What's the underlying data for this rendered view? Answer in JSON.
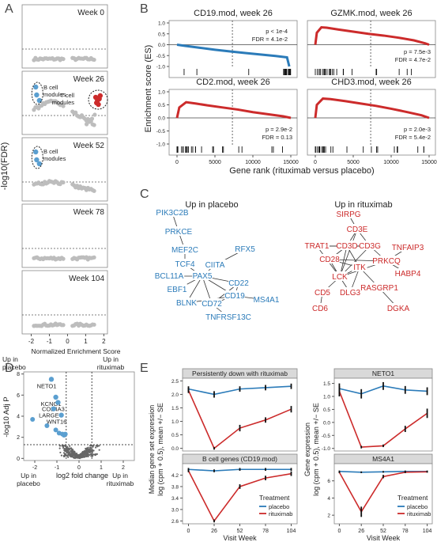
{
  "figure": {
    "description_hidden": ""
  },
  "panel_labels": [
    "A",
    "B",
    "C",
    "D",
    "E"
  ],
  "chart_data": [
    {
      "panel": "A",
      "type": "scatter",
      "ylabel": "-log10(FDR)",
      "xlabel": "Normalized Enrichment Score",
      "xlim": [
        -2.5,
        2.2
      ],
      "xticks": [
        -2,
        -1,
        0,
        1,
        2
      ],
      "x_end_labels": {
        "left": [
          "Up in",
          "placebo"
        ],
        "right": [
          "Up in",
          "rituximab"
        ]
      },
      "threshold_line": "dashed",
      "facets": [
        {
          "title": "Week 0",
          "annotations": []
        },
        {
          "title": "Week 26",
          "annotations": [
            {
              "text": "B cell modules",
              "lines": [
                "B cell",
                "modules"
              ]
            },
            {
              "text": "T cell modules",
              "lines": [
                "T cell",
                "modules"
              ]
            }
          ]
        },
        {
          "title": "Week 52",
          "annotations": [
            {
              "text": "B cell modules",
              "lines": [
                "B cell",
                "modules"
              ]
            }
          ]
        },
        {
          "title": "Week 78",
          "annotations": []
        },
        {
          "title": "Week 104",
          "annotations": []
        }
      ]
    },
    {
      "panel": "B",
      "type": "line",
      "ylabel": "Enrichment score (ES)",
      "xlabel": "Gene rank (rituximab versus placebo)",
      "xlim": [
        0,
        15000
      ],
      "xticks": [
        0,
        5000,
        10000,
        15000
      ],
      "ylim": [
        -1.0,
        1.0
      ],
      "yticks": [
        -1.0,
        -0.5,
        0.0,
        0.5,
        1.0
      ],
      "facets": [
        {
          "title": "CD19.mod, week 26",
          "color": "#2b7bb9",
          "stats": [
            "p < 1e-4",
            "FDR = 4.1e-2"
          ],
          "curve": {
            "x": [
              0,
              1000,
              3000,
              5000,
              7000,
              9000,
              11000,
              13000,
              14500,
              14800
            ],
            "y": [
              0,
              -0.05,
              -0.14,
              -0.23,
              -0.31,
              -0.38,
              -0.45,
              -0.52,
              -0.58,
              -1.0
            ]
          }
        },
        {
          "title": "GZMK.mod, week 26",
          "color": "#cc2b2b",
          "stats": [
            "p = 7.5e-3",
            "FDR = 4.7e-2"
          ],
          "curve": {
            "x": [
              0,
              200,
              800,
              1500,
              3000,
              5000,
              7000,
              9000,
              11000,
              13000,
              14500,
              15000
            ],
            "y": [
              0,
              0.55,
              0.8,
              0.78,
              0.7,
              0.6,
              0.5,
              0.42,
              0.32,
              0.2,
              0.06,
              0
            ]
          }
        },
        {
          "title": "CD2.mod, week 26",
          "color": "#cc2b2b",
          "stats": [
            "p = 2.9e-2",
            "FDR = 0.13"
          ],
          "curve": {
            "x": [
              0,
              300,
              1200,
              2500,
              4000,
              6000,
              8000,
              10000,
              12000,
              14000,
              15000
            ],
            "y": [
              0,
              0.4,
              0.6,
              0.55,
              0.48,
              0.4,
              0.32,
              0.22,
              0.14,
              0.06,
              0
            ]
          }
        },
        {
          "title": "CHD3.mod, week 26",
          "color": "#cc2b2b",
          "stats": [
            "p = 2.0e-3",
            "FDR = 5.4e-2"
          ],
          "curve": {
            "x": [
              0,
              200,
              1000,
              2000,
              4000,
              6000,
              8000,
              10000,
              12000,
              14000,
              15000
            ],
            "y": [
              0,
              0.5,
              0.74,
              0.72,
              0.64,
              0.55,
              0.46,
              0.35,
              0.23,
              0.1,
              0
            ]
          }
        }
      ]
    },
    {
      "panel": "C",
      "type": "network",
      "groups": [
        {
          "title": "Up in placebo",
          "color": "#2b7bb9",
          "nodes": [
            "PIK3C2B",
            "PRKCE",
            "MEF2C",
            "TCF4",
            "CIITA",
            "RFX5",
            "BCL11A",
            "PAX5",
            "EBF1",
            "CD22",
            "BLNK",
            "CD19",
            "MS4A1",
            "CD72",
            "TNFRSF13C"
          ],
          "edges": [
            [
              "PIK3C2B",
              "PRKCE"
            ],
            [
              "PRKCE",
              "MEF2C"
            ],
            [
              "MEF2C",
              "TCF4"
            ],
            [
              "TCF4",
              "PAX5"
            ],
            [
              "CIITA",
              "PAX5"
            ],
            [
              "RFX5",
              "CIITA"
            ],
            [
              "BCL11A",
              "PAX5"
            ],
            [
              "EBF1",
              "PAX5"
            ],
            [
              "PAX5",
              "CD22"
            ],
            [
              "PAX5",
              "CD19"
            ],
            [
              "PAX5",
              "BLNK"
            ],
            [
              "PAX5",
              "CD72"
            ],
            [
              "CD22",
              "CD19"
            ],
            [
              "CD19",
              "MS4A1"
            ],
            [
              "CD22",
              "CD72"
            ],
            [
              "CD19",
              "CD72"
            ],
            [
              "CD72",
              "TNFRSF13C"
            ],
            [
              "BLNK",
              "CD19"
            ]
          ]
        },
        {
          "title": "Up in rituximab",
          "color": "#cc2b2b",
          "nodes": [
            "SIRPG",
            "CD3E",
            "TRAT1",
            "CD3D",
            "CD3G",
            "TNFAIP3",
            "CD28",
            "PRKCQ",
            "HABP4",
            "ITK",
            "LCK",
            "CD5",
            "DLG3",
            "RASGRP1",
            "CD6",
            "DGKA"
          ],
          "edges": [
            [
              "SIRPG",
              "CD3E"
            ],
            [
              "CD3E",
              "CD3D"
            ],
            [
              "CD3E",
              "CD3G"
            ],
            [
              "TRAT1",
              "CD3D"
            ],
            [
              "TRAT1",
              "CD3G"
            ],
            [
              "CD3D",
              "CD3G"
            ],
            [
              "CD3D",
              "CD28"
            ],
            [
              "CD3D",
              "LCK"
            ],
            [
              "CD3G",
              "LCK"
            ],
            [
              "CD3G",
              "PRKCQ"
            ],
            [
              "CD3D",
              "ITK"
            ],
            [
              "CD28",
              "LCK"
            ],
            [
              "CD28",
              "ITK"
            ],
            [
              "CD28",
              "PRKCQ"
            ],
            [
              "PRKCQ",
              "TNFAIP3"
            ],
            [
              "PRKCQ",
              "HABP4"
            ],
            [
              "ITK",
              "LCK"
            ],
            [
              "ITK",
              "RASGRP1"
            ],
            [
              "LCK",
              "CD5"
            ],
            [
              "LCK",
              "DLG3"
            ],
            [
              "ITK",
              "DLG3"
            ],
            [
              "CD5",
              "CD6"
            ],
            [
              "RASGRP1",
              "DGKA"
            ],
            [
              "LCK",
              "PRKCQ"
            ],
            [
              "CD3E",
              "LCK"
            ],
            [
              "TRAT1",
              "LCK"
            ]
          ]
        }
      ]
    },
    {
      "panel": "D",
      "type": "scatter",
      "title": "",
      "xlabel": "log2 fold change",
      "ylabel": "-log10 Adj P",
      "xlim": [
        -2.5,
        2.5
      ],
      "ylim": [
        -0.2,
        8.2
      ],
      "xticks": [
        -2,
        -1,
        0,
        1,
        2
      ],
      "yticks": [
        0,
        2,
        4,
        6,
        8
      ],
      "x_end_labels": {
        "left": [
          "Up in",
          "placebo"
        ],
        "right": [
          "Up in",
          "rituximab"
        ]
      },
      "labeled_genes": [
        {
          "name": "NETO1",
          "x": -1.25,
          "y": 7.5
        },
        {
          "name": "KCNG1",
          "x": -1.05,
          "y": 5.8
        },
        {
          "name": "COL4A3",
          "x": -0.95,
          "y": 5.3
        },
        {
          "name": "LARGE",
          "x": -1.15,
          "y": 4.7
        },
        {
          "name": "WNT16",
          "x": -0.8,
          "y": 4.1
        }
      ]
    },
    {
      "panel": "E",
      "type": "line",
      "x": [
        0,
        26,
        52,
        78,
        104
      ],
      "xticks": [
        0,
        26,
        52,
        78,
        104
      ],
      "xlabel": "Visit Week",
      "legend": {
        "title": "Treatment",
        "placement": "bottom-right"
      },
      "colors": {
        "placebo": "#2b7bb9",
        "rituximab": "#cc2b2b"
      },
      "left_ylabel": [
        "Median gene set expression",
        "log (cpm + 0.5), mean +/− SE"
      ],
      "right_ylabel": [
        "Gene expression",
        "log (cpm + 0.5), mean +/− SE"
      ],
      "facets": [
        {
          "title": "Persistently down with rituximab",
          "ylim": [
            -0.1,
            2.6
          ],
          "yticks": [
            0.0,
            0.5,
            1.0,
            1.5,
            2.0,
            2.5
          ],
          "yticklabels": [
            "0.0",
            "0.5",
            "1.0",
            "1.5",
            "2.0",
            "2.5"
          ],
          "series": [
            {
              "name": "placebo",
              "values": [
                2.2,
                2.0,
                2.2,
                2.25,
                2.3
              ],
              "se": [
                0.1,
                0.12,
                0.1,
                0.1,
                0.1
              ]
            },
            {
              "name": "rituximab",
              "values": [
                2.15,
                0.0,
                0.75,
                1.05,
                1.45
              ],
              "se": [
                0.1,
                0.05,
                0.12,
                0.1,
                0.12
              ]
            }
          ]
        },
        {
          "title": "NETO1",
          "ylim": [
            -1.1,
            1.7
          ],
          "yticks": [
            -1.0,
            -0.5,
            0.0,
            0.5,
            1.0,
            1.5
          ],
          "yticklabels": [
            "-1.0",
            "-0.5",
            "0.0",
            "0.5",
            "1.0",
            "1.5"
          ],
          "series": [
            {
              "name": "placebo",
              "values": [
                1.3,
                1.1,
                1.4,
                1.25,
                1.2
              ],
              "se": [
                0.2,
                0.18,
                0.15,
                0.15,
                0.15
              ]
            },
            {
              "name": "rituximab",
              "values": [
                1.2,
                -0.95,
                -0.9,
                -0.25,
                0.35
              ],
              "se": [
                0.2,
                0.05,
                0.05,
                0.12,
                0.18
              ]
            }
          ]
        },
        {
          "title": "B cell genes (CD19.mod)",
          "ylim": [
            2.5,
            4.6
          ],
          "yticks": [
            2.6,
            3.0,
            3.4,
            3.8,
            4.2
          ],
          "yticklabels": [
            "2.6",
            "3.0",
            "3.4",
            "3.8",
            "4.2"
          ],
          "series": [
            {
              "name": "placebo",
              "values": [
                4.4,
                4.35,
                4.4,
                4.4,
                4.4
              ],
              "se": [
                0.05,
                0.05,
                0.05,
                0.05,
                0.05
              ]
            },
            {
              "name": "rituximab",
              "values": [
                4.35,
                2.6,
                3.8,
                4.1,
                4.25
              ],
              "se": [
                0.05,
                0.05,
                0.08,
                0.08,
                0.08
              ]
            }
          ]
        },
        {
          "title": "MS4A1",
          "ylim": [
            1,
            8
          ],
          "yticks": [
            2,
            4,
            6
          ],
          "yticklabels": [
            "2",
            "4",
            "6"
          ],
          "series": [
            {
              "name": "placebo",
              "values": [
                7.1,
                7.0,
                7.05,
                7.1,
                7.1
              ],
              "se": [
                0.1,
                0.1,
                0.1,
                0.1,
                0.1
              ]
            },
            {
              "name": "rituximab",
              "values": [
                7.0,
                2.4,
                6.5,
                7.0,
                7.05
              ],
              "se": [
                0.1,
                0.6,
                0.2,
                0.1,
                0.1
              ]
            }
          ]
        }
      ]
    }
  ]
}
